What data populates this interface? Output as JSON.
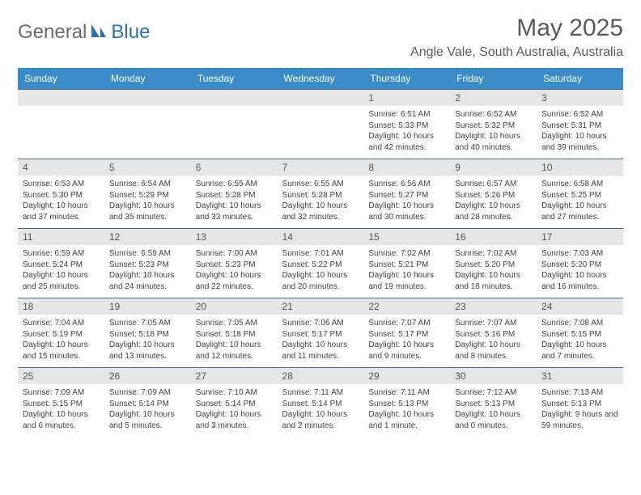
{
  "logo": {
    "part1": "General",
    "part2": "Blue"
  },
  "title": "May 2025",
  "subtitle": "Angle Vale, South Australia, Australia",
  "daynames": [
    "Sunday",
    "Monday",
    "Tuesday",
    "Wednesday",
    "Thursday",
    "Friday",
    "Saturday"
  ],
  "colors": {
    "header_bg": "#3b8bc8",
    "header_text": "#ffffff",
    "daynum_bg": "#e6e6e6",
    "border": "#4a6a85",
    "logo_gray": "#6b6b6b",
    "logo_blue": "#2e6fab"
  },
  "weeks": [
    [
      {
        "n": "",
        "sr": "",
        "ss": "",
        "dl": ""
      },
      {
        "n": "",
        "sr": "",
        "ss": "",
        "dl": ""
      },
      {
        "n": "",
        "sr": "",
        "ss": "",
        "dl": ""
      },
      {
        "n": "",
        "sr": "",
        "ss": "",
        "dl": ""
      },
      {
        "n": "1",
        "sr": "Sunrise: 6:51 AM",
        "ss": "Sunset: 5:33 PM",
        "dl": "Daylight: 10 hours and 42 minutes."
      },
      {
        "n": "2",
        "sr": "Sunrise: 6:52 AM",
        "ss": "Sunset: 5:32 PM",
        "dl": "Daylight: 10 hours and 40 minutes."
      },
      {
        "n": "3",
        "sr": "Sunrise: 6:52 AM",
        "ss": "Sunset: 5:31 PM",
        "dl": "Daylight: 10 hours and 39 minutes."
      }
    ],
    [
      {
        "n": "4",
        "sr": "Sunrise: 6:53 AM",
        "ss": "Sunset: 5:30 PM",
        "dl": "Daylight: 10 hours and 37 minutes."
      },
      {
        "n": "5",
        "sr": "Sunrise: 6:54 AM",
        "ss": "Sunset: 5:29 PM",
        "dl": "Daylight: 10 hours and 35 minutes."
      },
      {
        "n": "6",
        "sr": "Sunrise: 6:55 AM",
        "ss": "Sunset: 5:28 PM",
        "dl": "Daylight: 10 hours and 33 minutes."
      },
      {
        "n": "7",
        "sr": "Sunrise: 6:55 AM",
        "ss": "Sunset: 5:28 PM",
        "dl": "Daylight: 10 hours and 32 minutes."
      },
      {
        "n": "8",
        "sr": "Sunrise: 6:56 AM",
        "ss": "Sunset: 5:27 PM",
        "dl": "Daylight: 10 hours and 30 minutes."
      },
      {
        "n": "9",
        "sr": "Sunrise: 6:57 AM",
        "ss": "Sunset: 5:26 PM",
        "dl": "Daylight: 10 hours and 28 minutes."
      },
      {
        "n": "10",
        "sr": "Sunrise: 6:58 AM",
        "ss": "Sunset: 5:25 PM",
        "dl": "Daylight: 10 hours and 27 minutes."
      }
    ],
    [
      {
        "n": "11",
        "sr": "Sunrise: 6:59 AM",
        "ss": "Sunset: 5:24 PM",
        "dl": "Daylight: 10 hours and 25 minutes."
      },
      {
        "n": "12",
        "sr": "Sunrise: 6:59 AM",
        "ss": "Sunset: 5:23 PM",
        "dl": "Daylight: 10 hours and 24 minutes."
      },
      {
        "n": "13",
        "sr": "Sunrise: 7:00 AM",
        "ss": "Sunset: 5:23 PM",
        "dl": "Daylight: 10 hours and 22 minutes."
      },
      {
        "n": "14",
        "sr": "Sunrise: 7:01 AM",
        "ss": "Sunset: 5:22 PM",
        "dl": "Daylight: 10 hours and 20 minutes."
      },
      {
        "n": "15",
        "sr": "Sunrise: 7:02 AM",
        "ss": "Sunset: 5:21 PM",
        "dl": "Daylight: 10 hours and 19 minutes."
      },
      {
        "n": "16",
        "sr": "Sunrise: 7:02 AM",
        "ss": "Sunset: 5:20 PM",
        "dl": "Daylight: 10 hours and 18 minutes."
      },
      {
        "n": "17",
        "sr": "Sunrise: 7:03 AM",
        "ss": "Sunset: 5:20 PM",
        "dl": "Daylight: 10 hours and 16 minutes."
      }
    ],
    [
      {
        "n": "18",
        "sr": "Sunrise: 7:04 AM",
        "ss": "Sunset: 5:19 PM",
        "dl": "Daylight: 10 hours and 15 minutes."
      },
      {
        "n": "19",
        "sr": "Sunrise: 7:05 AM",
        "ss": "Sunset: 5:18 PM",
        "dl": "Daylight: 10 hours and 13 minutes."
      },
      {
        "n": "20",
        "sr": "Sunrise: 7:05 AM",
        "ss": "Sunset: 5:18 PM",
        "dl": "Daylight: 10 hours and 12 minutes."
      },
      {
        "n": "21",
        "sr": "Sunrise: 7:06 AM",
        "ss": "Sunset: 5:17 PM",
        "dl": "Daylight: 10 hours and 11 minutes."
      },
      {
        "n": "22",
        "sr": "Sunrise: 7:07 AM",
        "ss": "Sunset: 5:17 PM",
        "dl": "Daylight: 10 hours and 9 minutes."
      },
      {
        "n": "23",
        "sr": "Sunrise: 7:07 AM",
        "ss": "Sunset: 5:16 PM",
        "dl": "Daylight: 10 hours and 8 minutes."
      },
      {
        "n": "24",
        "sr": "Sunrise: 7:08 AM",
        "ss": "Sunset: 5:15 PM",
        "dl": "Daylight: 10 hours and 7 minutes."
      }
    ],
    [
      {
        "n": "25",
        "sr": "Sunrise: 7:09 AM",
        "ss": "Sunset: 5:15 PM",
        "dl": "Daylight: 10 hours and 6 minutes."
      },
      {
        "n": "26",
        "sr": "Sunrise: 7:09 AM",
        "ss": "Sunset: 5:14 PM",
        "dl": "Daylight: 10 hours and 5 minutes."
      },
      {
        "n": "27",
        "sr": "Sunrise: 7:10 AM",
        "ss": "Sunset: 5:14 PM",
        "dl": "Daylight: 10 hours and 3 minutes."
      },
      {
        "n": "28",
        "sr": "Sunrise: 7:11 AM",
        "ss": "Sunset: 5:14 PM",
        "dl": "Daylight: 10 hours and 2 minutes."
      },
      {
        "n": "29",
        "sr": "Sunrise: 7:11 AM",
        "ss": "Sunset: 5:13 PM",
        "dl": "Daylight: 10 hours and 1 minute."
      },
      {
        "n": "30",
        "sr": "Sunrise: 7:12 AM",
        "ss": "Sunset: 5:13 PM",
        "dl": "Daylight: 10 hours and 0 minutes."
      },
      {
        "n": "31",
        "sr": "Sunrise: 7:13 AM",
        "ss": "Sunset: 5:13 PM",
        "dl": "Daylight: 9 hours and 59 minutes."
      }
    ]
  ]
}
